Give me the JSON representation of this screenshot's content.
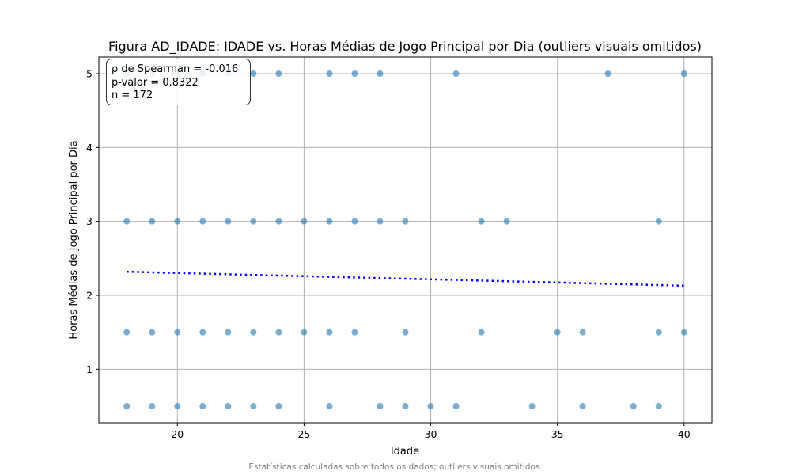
{
  "chart_data": {
    "type": "scatter",
    "title": "Figura AD_IDADE: IDADE vs. Horas Médias de Jogo Principal por Dia (outliers visuais omitidos)",
    "xlabel": "Idade",
    "ylabel": "Horas Médias de Jogo Principal por Dia",
    "xlim": [
      16.9,
      41.1
    ],
    "ylim": [
      0.275,
      5.225
    ],
    "x_ticks": [
      20,
      25,
      30,
      35,
      40
    ],
    "x_tick_labels": [
      "20",
      "25",
      "30",
      "35",
      "40"
    ],
    "y_ticks": [
      1,
      2,
      3,
      4,
      5
    ],
    "y_tick_labels": [
      "1",
      "2",
      "3",
      "4",
      "5"
    ],
    "grid": true,
    "point_color": "#1f77b4",
    "trend_color": "#0000ff",
    "series": [
      {
        "points": [
          [
            18,
            5
          ],
          [
            19,
            5
          ],
          [
            20,
            5
          ],
          [
            21,
            5
          ],
          [
            22,
            5
          ],
          [
            23,
            5
          ],
          [
            24,
            5
          ],
          [
            26,
            5
          ],
          [
            27,
            5
          ],
          [
            28,
            5
          ],
          [
            31,
            5
          ],
          [
            37,
            5
          ],
          [
            40,
            5
          ],
          [
            18,
            3
          ],
          [
            19,
            3
          ],
          [
            20,
            3
          ],
          [
            21,
            3
          ],
          [
            22,
            3
          ],
          [
            23,
            3
          ],
          [
            24,
            3
          ],
          [
            25,
            3
          ],
          [
            26,
            3
          ],
          [
            27,
            3
          ],
          [
            28,
            3
          ],
          [
            29,
            3
          ],
          [
            32,
            3
          ],
          [
            33,
            3
          ],
          [
            39,
            3
          ],
          [
            18,
            1.5
          ],
          [
            19,
            1.5
          ],
          [
            20,
            1.5
          ],
          [
            21,
            1.5
          ],
          [
            22,
            1.5
          ],
          [
            23,
            1.5
          ],
          [
            24,
            1.5
          ],
          [
            25,
            1.5
          ],
          [
            26,
            1.5
          ],
          [
            27,
            1.5
          ],
          [
            29,
            1.5
          ],
          [
            32,
            1.5
          ],
          [
            35,
            1.5
          ],
          [
            36,
            1.5
          ],
          [
            39,
            1.5
          ],
          [
            40,
            1.5
          ],
          [
            18,
            0.5
          ],
          [
            19,
            0.5
          ],
          [
            20,
            0.5
          ],
          [
            21,
            0.5
          ],
          [
            22,
            0.5
          ],
          [
            23,
            0.5
          ],
          [
            24,
            0.5
          ],
          [
            26,
            0.5
          ],
          [
            28,
            0.5
          ],
          [
            29,
            0.5
          ],
          [
            30,
            0.5
          ],
          [
            31,
            0.5
          ],
          [
            34,
            0.5
          ],
          [
            36,
            0.5
          ],
          [
            38,
            0.5
          ],
          [
            39,
            0.5
          ]
        ]
      }
    ],
    "trend_line": {
      "x": [
        18,
        40
      ],
      "y": [
        2.32,
        2.13
      ]
    },
    "annotation": [
      "ρ de Spearman = -0.016",
      "p-valor = 0.8322",
      "n = 172"
    ]
  },
  "footnote": "Estatísticas calculadas sobre todos os dados; outliers visuais omitidos."
}
